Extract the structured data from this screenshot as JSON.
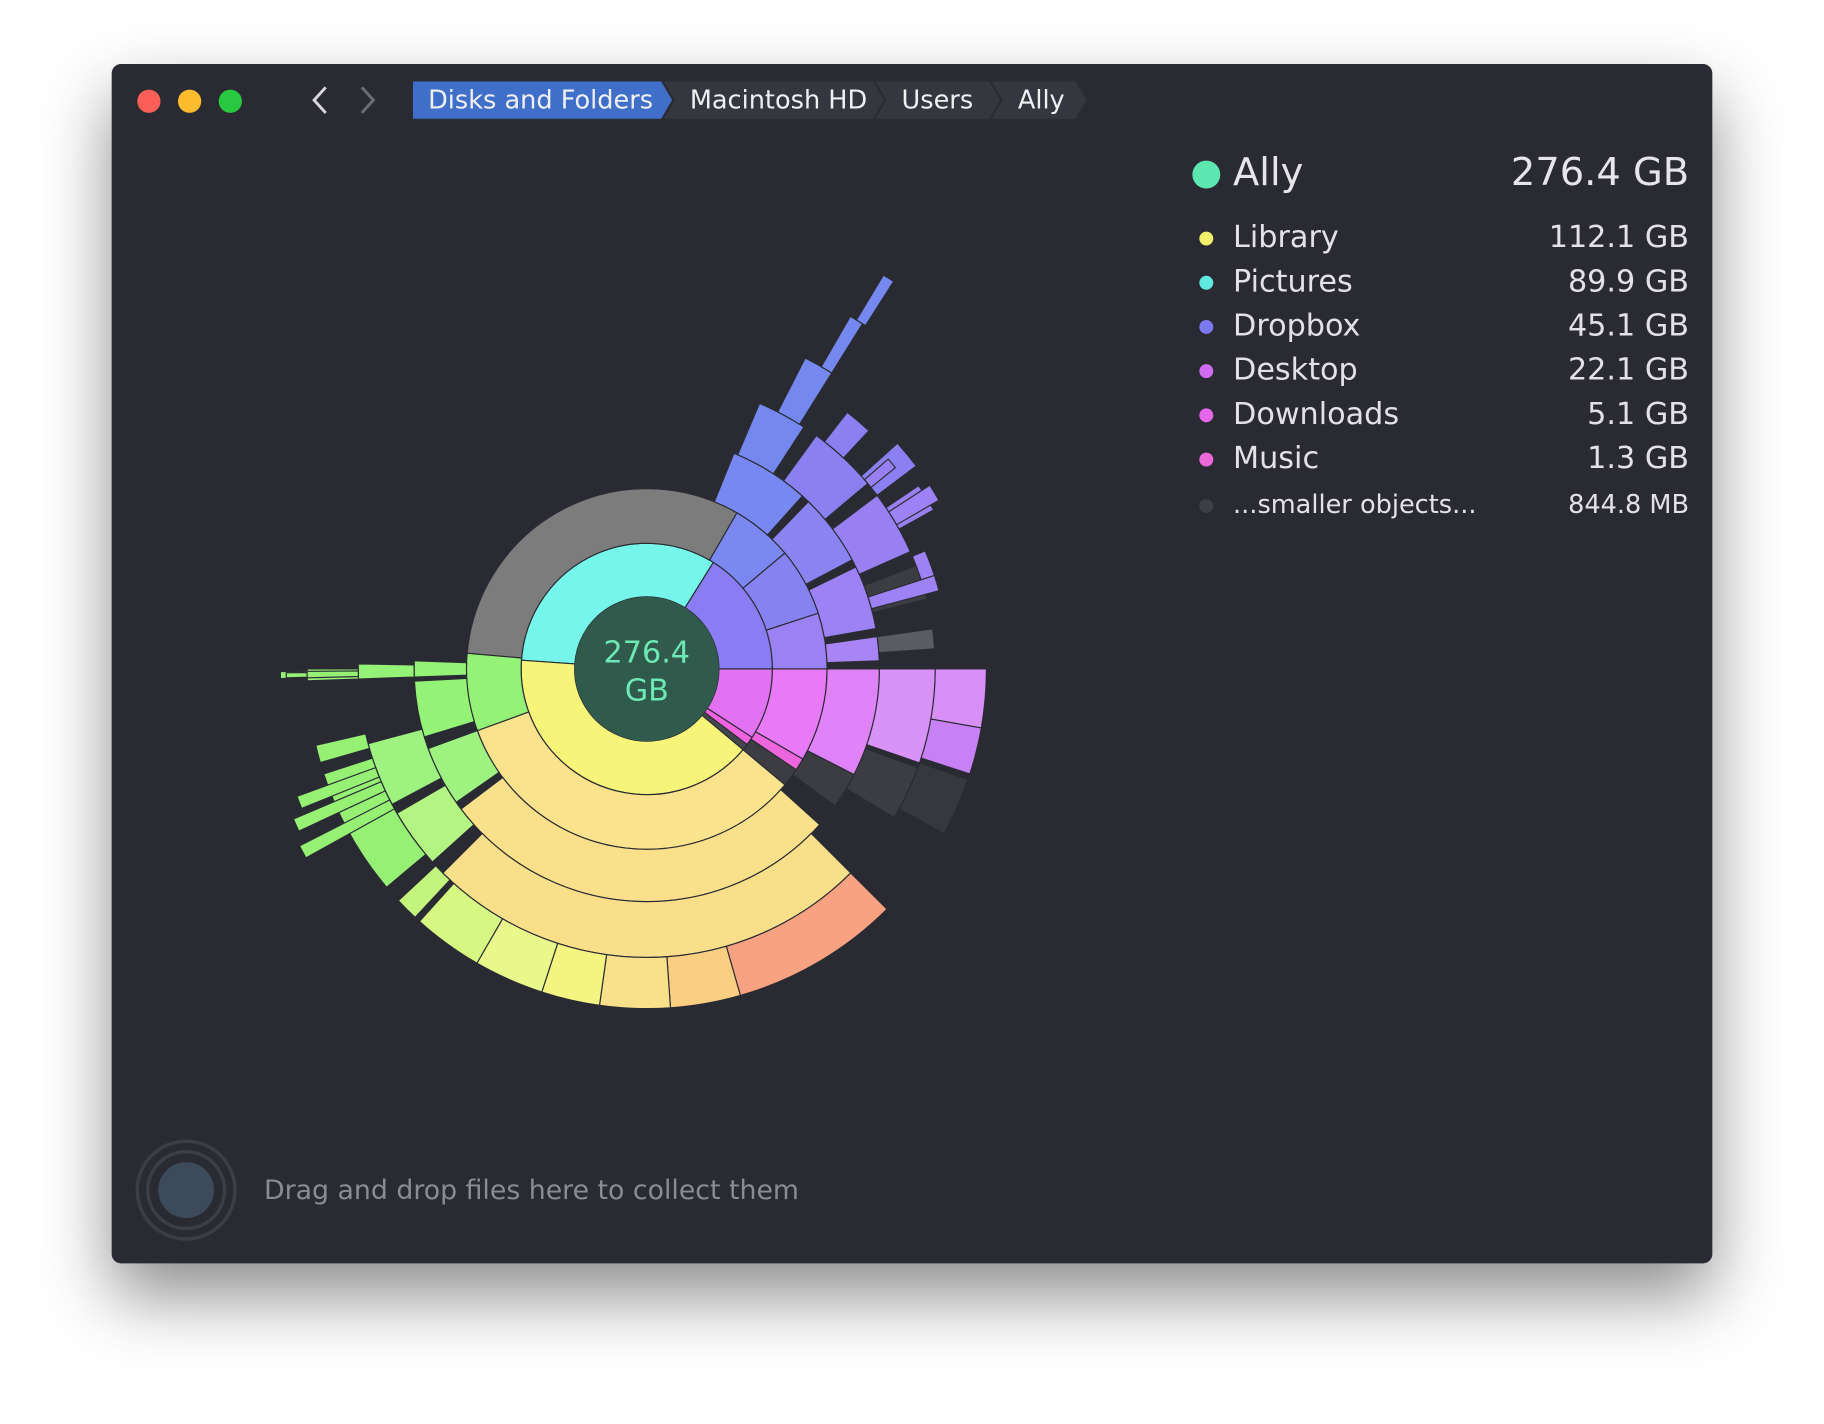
{
  "breadcrumb": [
    "Disks and Folders",
    "Macintosh HD",
    "Users",
    "Ally"
  ],
  "root": {
    "name": "Ally",
    "size": "276.4 GB"
  },
  "center": {
    "value": "276.4",
    "unit": "GB"
  },
  "items": [
    {
      "name": "Library",
      "size": "112.1 GB",
      "color": "#f2ef6a"
    },
    {
      "name": "Pictures",
      "size": "89.9 GB",
      "color": "#5fe9e0"
    },
    {
      "name": "Dropbox",
      "size": "45.1 GB",
      "color": "#7c78ee"
    },
    {
      "name": "Desktop",
      "size": "22.1 GB",
      "color": "#cf6cf2"
    },
    {
      "name": "Downloads",
      "size": "5.1 GB",
      "color": "#e668ea"
    },
    {
      "name": "Music",
      "size": "1.3 GB",
      "color": "#ec68d8"
    },
    {
      "name": "...smaller objects...",
      "size": "844.8  MB",
      "color": "#3c3f46"
    }
  ],
  "dropzone": "Drag and drop files here to collect them"
}
